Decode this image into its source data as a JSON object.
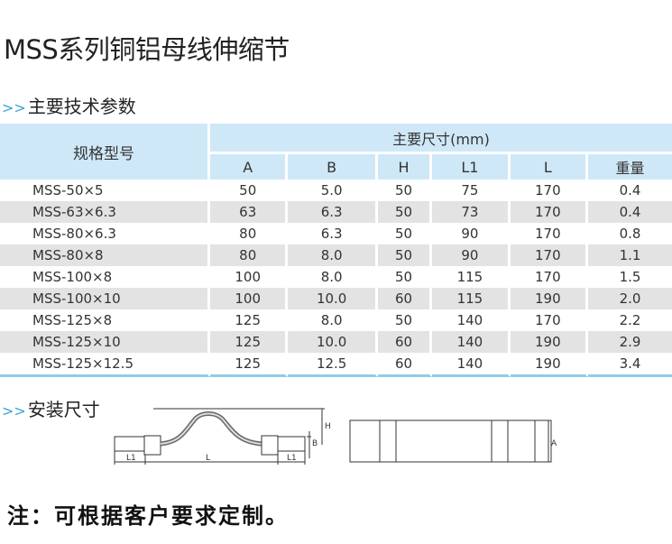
{
  "title": "MSS系列铜铝母线伸缩节",
  "section1": {
    "arrow": ">>",
    "label": "主要技术参数"
  },
  "table": {
    "spec_header": "规格型号",
    "group_header": "主要尺寸(mm)",
    "columns": [
      "A",
      "B",
      "H",
      "L1",
      "L",
      "重量"
    ],
    "rows": [
      [
        "MSS-50×5",
        "50",
        "5.0",
        "50",
        "75",
        "170",
        "0.4"
      ],
      [
        "MSS-63×6.3",
        "63",
        "6.3",
        "50",
        "73",
        "170",
        "0.4"
      ],
      [
        "MSS-80×6.3",
        "80",
        "6.3",
        "50",
        "90",
        "170",
        "0.8"
      ],
      [
        "MSS-80×8",
        "80",
        "8.0",
        "50",
        "90",
        "170",
        "1.1"
      ],
      [
        "MSS-100×8",
        "100",
        "8.0",
        "50",
        "115",
        "170",
        "1.5"
      ],
      [
        "MSS-100×10",
        "100",
        "10.0",
        "60",
        "115",
        "190",
        "2.0"
      ],
      [
        "MSS-125×8",
        "125",
        "8.0",
        "50",
        "140",
        "170",
        "2.2"
      ],
      [
        "MSS-125×10",
        "125",
        "10.0",
        "60",
        "140",
        "190",
        "2.9"
      ],
      [
        "MSS-125×12.5",
        "125",
        "12.5",
        "60",
        "140",
        "190",
        "3.4"
      ]
    ]
  },
  "section2": {
    "arrow": ">>",
    "label": "安装尺寸"
  },
  "drawing": {
    "labels": {
      "L1": "L1",
      "L": "L",
      "H": "H",
      "B": "B",
      "A": "A"
    }
  },
  "note": "注：可根据客户要求定制。"
}
